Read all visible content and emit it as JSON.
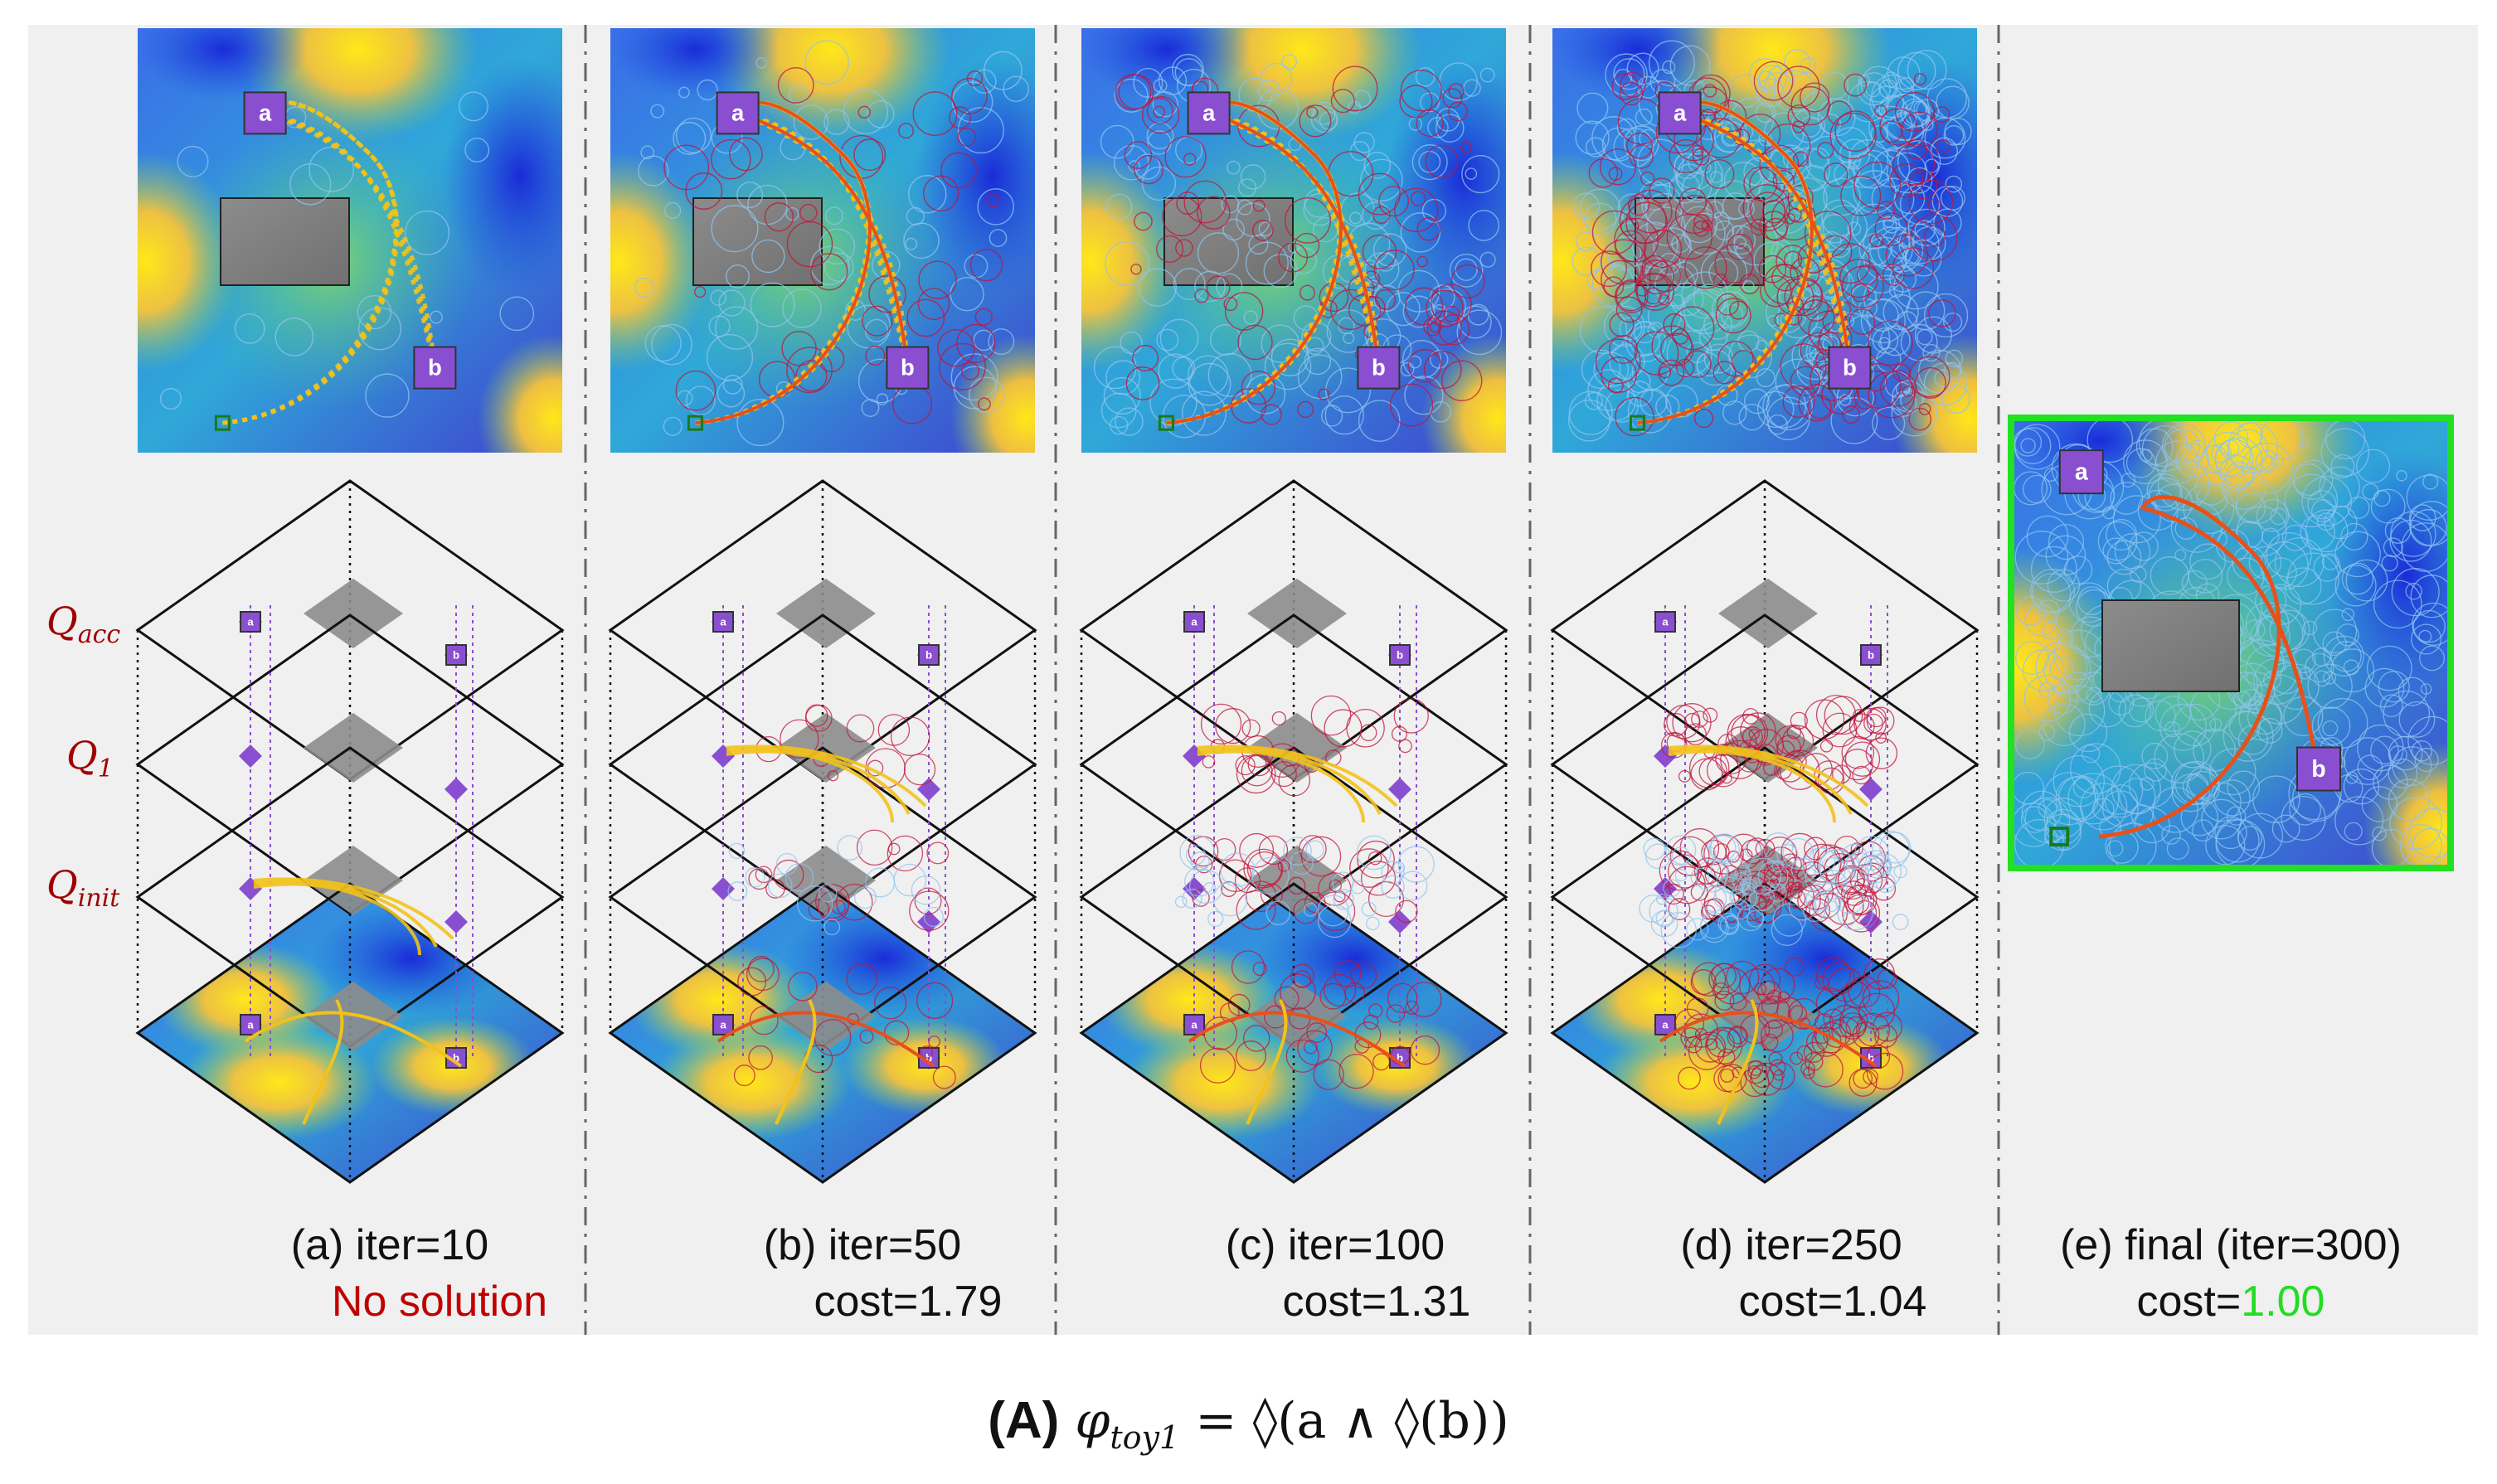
{
  "panels": [
    {
      "id": "a",
      "iteration_label": "(a) iter=10",
      "result_label": "No solution",
      "solved": false
    },
    {
      "id": "b",
      "iteration_label": "(b) iter=50",
      "result_label": "cost=1.79",
      "solved": true
    },
    {
      "id": "c",
      "iteration_label": "(c) iter=100",
      "result_label": "cost=1.31",
      "solved": true
    },
    {
      "id": "d",
      "iteration_label": "(d) iter=250",
      "result_label": "cost=1.04",
      "solved": true
    },
    {
      "id": "e",
      "iteration_label": "(e) final (iter=300)",
      "result_label_prefix": "cost=",
      "result_label_value": "1.00",
      "solved": true
    }
  ],
  "regions": {
    "a_label": "a",
    "b_label": "b"
  },
  "automaton_layers": [
    "Q_acc",
    "Q_1",
    "Q_init"
  ],
  "automaton_layer_display": {
    "acc": {
      "base": "Q",
      "sub": "acc"
    },
    "one": {
      "base": "Q",
      "sub": "1"
    },
    "init": {
      "base": "Q",
      "sub": "init"
    }
  },
  "figure_caption": {
    "panel_letter": "(A)",
    "formula_lhs": "φ",
    "formula_sub": "toy1",
    "formula_rhs": " = ◊(a ∧ ◊(b))"
  },
  "colors": {
    "region_fill": "#8a4fd0",
    "obstacle_fill": "#8a8a8a",
    "path_primary": "#e8501a",
    "path_candidates": "#f2c21a",
    "tree_blue": "#8fc4ee",
    "tree_red": "#c0143c",
    "start_marker": "#1a7a1a",
    "final_border": "#22e022",
    "cost_final": "#22dd22",
    "no_solution": "#c00000"
  }
}
